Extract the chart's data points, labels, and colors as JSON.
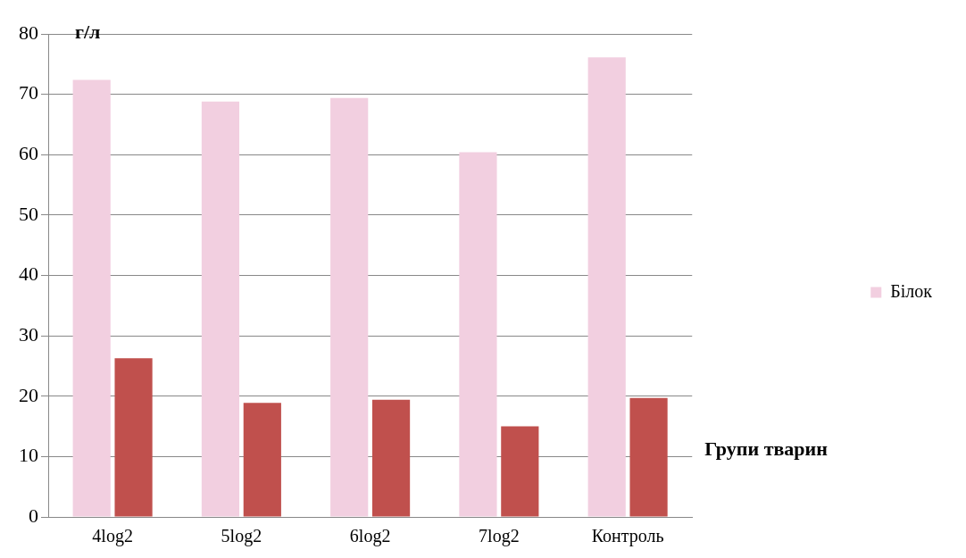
{
  "chart_data": {
    "type": "bar",
    "ylabel": "г/л",
    "xlabel": "Групи тварин",
    "categories": [
      "4log2",
      "5log2",
      "6log2",
      "7log2",
      "Контроль"
    ],
    "series": [
      {
        "name": "Білок",
        "color": "#f2cfe0",
        "values": [
          72.4,
          68.8,
          69.4,
          60.4,
          76.1
        ]
      },
      {
        "color": "#c0504d",
        "values": [
          26.3,
          18.9,
          19.4,
          15.0,
          19.7
        ]
      }
    ],
    "ylim": [
      0,
      80
    ],
    "yticks": [
      0,
      10,
      20,
      30,
      40,
      50,
      60,
      70,
      80
    ],
    "grid": "y",
    "legend": "right"
  }
}
